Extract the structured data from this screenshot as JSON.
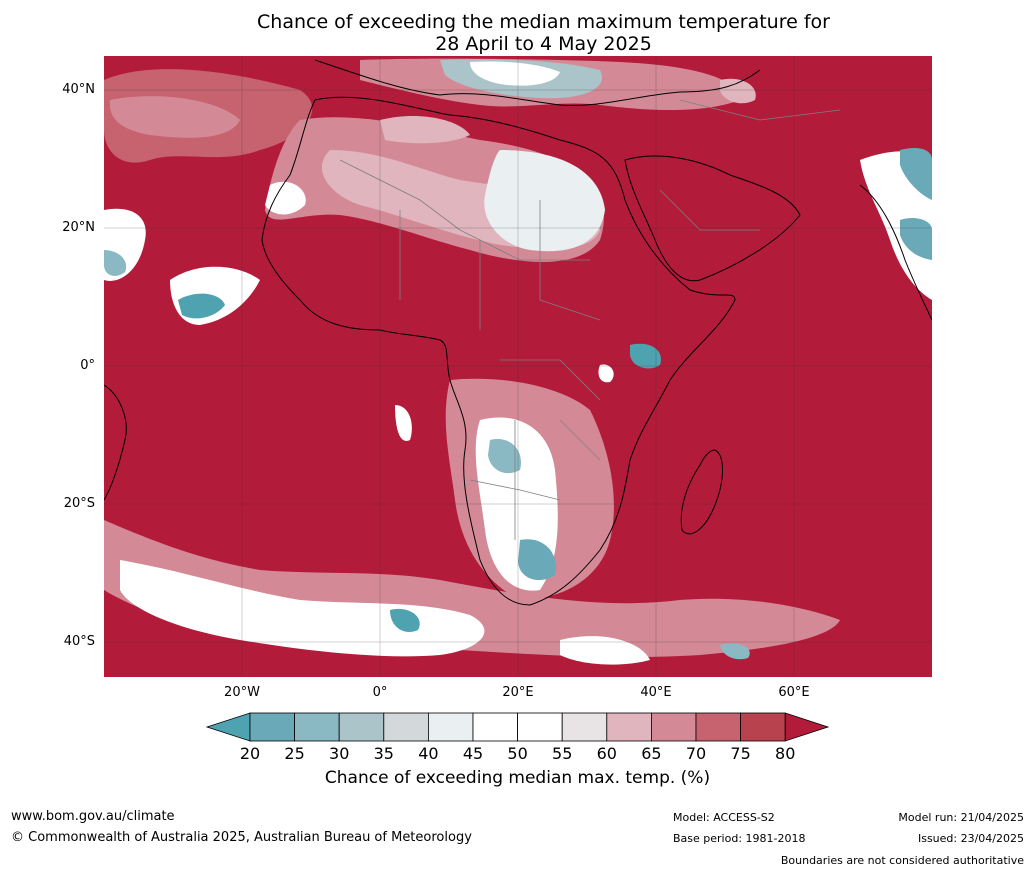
{
  "title": {
    "line1": "Chance of exceeding the median maximum temperature for",
    "line2": "28 April to 4 May 2025"
  },
  "map": {
    "latitude_labels": [
      "40°N",
      "20°N",
      "0°",
      "20°S",
      "40°S"
    ],
    "longitude_labels": [
      "20°W",
      "0°",
      "20°E",
      "40°E",
      "60°E"
    ],
    "land_outline_color": "#000000",
    "border_color": "#808080",
    "ocean_fill_color": "#b31b3a"
  },
  "colorbar": {
    "tick_labels": [
      "20",
      "25",
      "30",
      "35",
      "40",
      "45",
      "50",
      "55",
      "60",
      "65",
      "70",
      "75",
      "80"
    ],
    "colors": [
      "#4fa3b1",
      "#6aaab8",
      "#8ab8c3",
      "#aac4ca",
      "#d3d8da",
      "#eaeff1",
      "#ffffff",
      "#ffffff",
      "#e8e3e5",
      "#e0b5bd",
      "#d48a96",
      "#c6636f",
      "#b9424f",
      "#b31b3a"
    ],
    "label": "Chance of exceeding median max. temp. (%)"
  },
  "footer": {
    "website": "www.bom.gov.au/climate",
    "copyright": "© Commonwealth of Australia 2025, Australian Bureau of Meteorology",
    "model": "Model: ACCESS-S2",
    "base_period": "Base period: 1981-2018",
    "model_run": "Model run: 21/04/2025",
    "issued": "Issued: 23/04/2025",
    "disclaimer": "Boundaries are not considered authoritative"
  }
}
